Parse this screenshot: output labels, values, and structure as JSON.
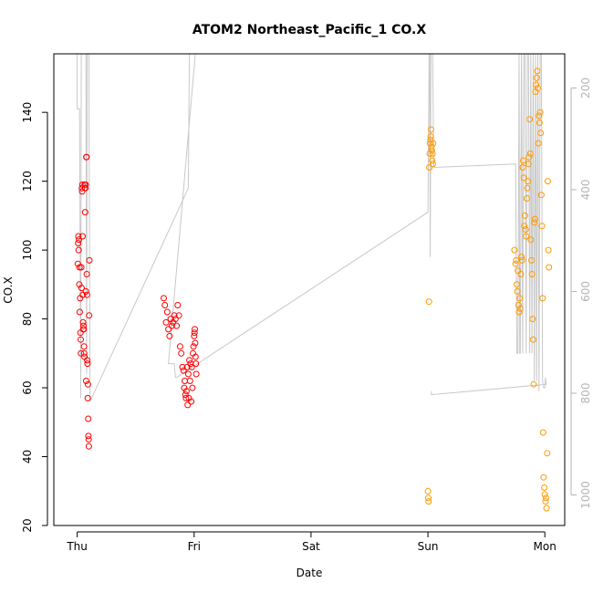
{
  "chart_data": {
    "type": "scatter",
    "title": "ATOM2 Northeast_Pacific_1 CO.X",
    "xlabel": "Date",
    "ylabel": "CO.X",
    "x_ticks": [
      {
        "label": "Thu",
        "day": 0
      },
      {
        "label": "Fri",
        "day": 1
      },
      {
        "label": "Sat",
        "day": 2
      },
      {
        "label": "Sun",
        "day": 3
      },
      {
        "label": "Mon",
        "day": 4
      }
    ],
    "xlim": [
      -0.2,
      4.17
    ],
    "ylim": [
      20,
      157
    ],
    "y_ticks": [
      20,
      40,
      60,
      80,
      100,
      120,
      140
    ],
    "y2_ticks": [
      200,
      400,
      600,
      800,
      1000
    ],
    "y2lim": [
      1060,
      133
    ],
    "y2_reversed": true,
    "grid": false,
    "colors": {
      "series1": "#ff0000",
      "series2": "#ff9900",
      "profile": "#c8c8c8",
      "axis": "#000000",
      "axis2": "#b4b4b4"
    },
    "series": [
      {
        "color": "#ff0000",
        "points": [
          [
            0.005,
            96
          ],
          [
            0.008,
            102
          ],
          [
            0.01,
            104
          ],
          [
            0.012,
            100
          ],
          [
            0.015,
            103
          ],
          [
            0.018,
            90
          ],
          [
            0.02,
            95
          ],
          [
            0.022,
            82
          ],
          [
            0.025,
            86
          ],
          [
            0.028,
            76
          ],
          [
            0.03,
            74
          ],
          [
            0.032,
            70
          ],
          [
            0.035,
            95
          ],
          [
            0.037,
            89
          ],
          [
            0.04,
            118
          ],
          [
            0.042,
            117
          ],
          [
            0.044,
            119
          ],
          [
            0.046,
            104
          ],
          [
            0.048,
            87
          ],
          [
            0.05,
            79
          ],
          [
            0.052,
            77
          ],
          [
            0.054,
            78
          ],
          [
            0.056,
            77
          ],
          [
            0.058,
            72
          ],
          [
            0.06,
            70
          ],
          [
            0.062,
            69
          ],
          [
            0.064,
            119
          ],
          [
            0.066,
            118
          ],
          [
            0.068,
            111
          ],
          [
            0.07,
            118
          ],
          [
            0.072,
            119
          ],
          [
            0.074,
            88
          ],
          [
            0.076,
            62
          ],
          [
            0.078,
            127
          ],
          [
            0.08,
            127
          ],
          [
            0.082,
            93
          ],
          [
            0.084,
            87
          ],
          [
            0.086,
            68
          ],
          [
            0.088,
            67
          ],
          [
            0.09,
            57
          ],
          [
            0.092,
            61
          ],
          [
            0.094,
            51
          ],
          [
            0.096,
            46
          ],
          [
            0.098,
            45
          ],
          [
            0.1,
            43
          ],
          [
            0.102,
            81
          ],
          [
            0.104,
            97
          ],
          [
            0.74,
            86
          ],
          [
            0.75,
            84
          ],
          [
            0.76,
            79
          ],
          [
            0.77,
            82
          ],
          [
            0.78,
            77
          ],
          [
            0.79,
            75
          ],
          [
            0.8,
            80
          ],
          [
            0.81,
            78
          ],
          [
            0.82,
            79
          ],
          [
            0.83,
            81
          ],
          [
            0.84,
            80
          ],
          [
            0.85,
            78
          ],
          [
            0.86,
            84
          ],
          [
            0.87,
            81
          ],
          [
            0.88,
            72
          ],
          [
            0.89,
            70
          ],
          [
            0.9,
            66
          ],
          [
            0.91,
            65
          ],
          [
            0.915,
            60
          ],
          [
            0.92,
            62
          ],
          [
            0.925,
            58
          ],
          [
            0.93,
            57
          ],
          [
            0.935,
            59
          ],
          [
            0.94,
            66
          ],
          [
            0.945,
            55
          ],
          [
            0.95,
            64
          ],
          [
            0.955,
            57
          ],
          [
            0.96,
            68
          ],
          [
            0.965,
            62
          ],
          [
            0.97,
            67
          ],
          [
            0.975,
            56
          ],
          [
            0.98,
            66
          ],
          [
            0.985,
            60
          ],
          [
            0.99,
            70
          ],
          [
            0.995,
            72
          ],
          [
            1.0,
            75
          ],
          [
            1.003,
            76
          ],
          [
            1.006,
            77
          ],
          [
            1.009,
            73
          ],
          [
            1.012,
            69
          ],
          [
            1.015,
            67
          ],
          [
            1.018,
            64
          ]
        ]
      },
      {
        "color": "#ff9900",
        "points": [
          [
            3.0,
            30
          ],
          [
            3.003,
            28
          ],
          [
            3.006,
            27
          ],
          [
            3.009,
            85
          ],
          [
            3.012,
            124
          ],
          [
            3.015,
            128
          ],
          [
            3.018,
            131
          ],
          [
            3.021,
            132
          ],
          [
            3.024,
            133
          ],
          [
            3.027,
            135
          ],
          [
            3.03,
            130
          ],
          [
            3.033,
            129
          ],
          [
            3.036,
            126
          ],
          [
            3.039,
            128
          ],
          [
            3.042,
            125
          ],
          [
            3.045,
            131
          ],
          [
            3.74,
            100
          ],
          [
            3.75,
            96
          ],
          [
            3.755,
            97
          ],
          [
            3.76,
            90
          ],
          [
            3.765,
            88
          ],
          [
            3.77,
            94
          ],
          [
            3.775,
            84
          ],
          [
            3.78,
            82
          ],
          [
            3.785,
            86
          ],
          [
            3.79,
            83
          ],
          [
            3.795,
            93
          ],
          [
            3.8,
            98
          ],
          [
            3.805,
            97
          ],
          [
            3.81,
            124
          ],
          [
            3.815,
            126
          ],
          [
            3.82,
            121
          ],
          [
            3.825,
            107
          ],
          [
            3.83,
            110
          ],
          [
            3.835,
            106
          ],
          [
            3.84,
            104
          ],
          [
            3.845,
            115
          ],
          [
            3.85,
            118
          ],
          [
            3.855,
            120
          ],
          [
            3.86,
            125
          ],
          [
            3.865,
            127
          ],
          [
            3.87,
            138
          ],
          [
            3.875,
            128
          ],
          [
            3.88,
            103
          ],
          [
            3.885,
            97
          ],
          [
            3.89,
            93
          ],
          [
            3.895,
            80
          ],
          [
            3.9,
            74
          ],
          [
            3.905,
            61
          ],
          [
            3.91,
            108
          ],
          [
            3.915,
            109
          ],
          [
            3.92,
            146
          ],
          [
            3.925,
            148
          ],
          [
            3.93,
            150
          ],
          [
            3.935,
            152
          ],
          [
            3.94,
            147
          ],
          [
            3.945,
            131
          ],
          [
            3.95,
            139
          ],
          [
            3.955,
            137
          ],
          [
            3.96,
            140
          ],
          [
            3.965,
            134
          ],
          [
            3.97,
            116
          ],
          [
            3.975,
            107
          ],
          [
            3.98,
            86
          ],
          [
            3.985,
            47
          ],
          [
            3.99,
            34
          ],
          [
            3.995,
            31
          ],
          [
            4.0,
            29
          ],
          [
            4.005,
            27
          ],
          [
            4.01,
            28
          ],
          [
            4.015,
            25
          ],
          [
            4.02,
            41
          ],
          [
            4.025,
            120
          ],
          [
            4.03,
            100
          ],
          [
            4.035,
            95
          ]
        ]
      }
    ],
    "profile_path": [
      [
        0.0,
        157
      ],
      [
        0.0,
        141
      ],
      [
        0.02,
        141
      ],
      [
        0.03,
        57
      ],
      [
        0.035,
        157
      ],
      [
        0.04,
        157
      ],
      [
        0.05,
        157
      ],
      [
        0.06,
        157
      ],
      [
        0.065,
        157
      ],
      [
        0.075,
        157
      ],
      [
        0.08,
        64
      ],
      [
        0.085,
        157
      ],
      [
        0.09,
        157
      ],
      [
        0.1,
        157
      ],
      [
        0.11,
        56
      ],
      [
        0.95,
        118
      ],
      [
        0.96,
        157
      ],
      [
        0.97,
        157
      ],
      [
        0.975,
        157
      ],
      [
        0.98,
        157
      ],
      [
        0.985,
        157
      ],
      [
        0.99,
        157
      ],
      [
        1.0,
        157
      ],
      [
        1.005,
        157
      ],
      [
        1.01,
        157
      ],
      [
        0.78,
        67
      ],
      [
        0.83,
        67
      ],
      [
        0.84,
        63
      ],
      [
        0.85,
        63
      ],
      [
        3.0,
        111
      ],
      [
        3.01,
        157
      ],
      [
        3.015,
        157
      ],
      [
        3.02,
        98
      ],
      [
        3.025,
        157
      ],
      [
        3.03,
        157
      ],
      [
        3.04,
        157
      ],
      [
        3.05,
        124
      ],
      [
        3.75,
        125
      ],
      [
        3.76,
        70
      ],
      [
        3.77,
        70
      ],
      [
        3.78,
        157
      ],
      [
        3.785,
        70
      ],
      [
        3.79,
        70
      ],
      [
        3.8,
        157
      ],
      [
        3.81,
        70
      ],
      [
        3.82,
        157
      ],
      [
        3.83,
        157
      ],
      [
        3.84,
        70
      ],
      [
        3.85,
        157
      ],
      [
        3.86,
        157
      ],
      [
        3.87,
        70
      ],
      [
        3.88,
        157
      ],
      [
        3.89,
        70
      ],
      [
        3.9,
        157
      ],
      [
        3.91,
        62
      ],
      [
        3.92,
        157
      ],
      [
        3.93,
        62
      ],
      [
        3.94,
        157
      ],
      [
        3.95,
        59
      ],
      [
        3.96,
        157
      ],
      [
        3.97,
        157
      ],
      [
        3.98,
        62
      ],
      [
        3.99,
        60
      ],
      [
        4.0,
        60
      ],
      [
        4.005,
        63
      ],
      [
        4.01,
        61
      ],
      [
        3.03,
        58
      ],
      [
        3.03,
        59
      ]
    ]
  }
}
